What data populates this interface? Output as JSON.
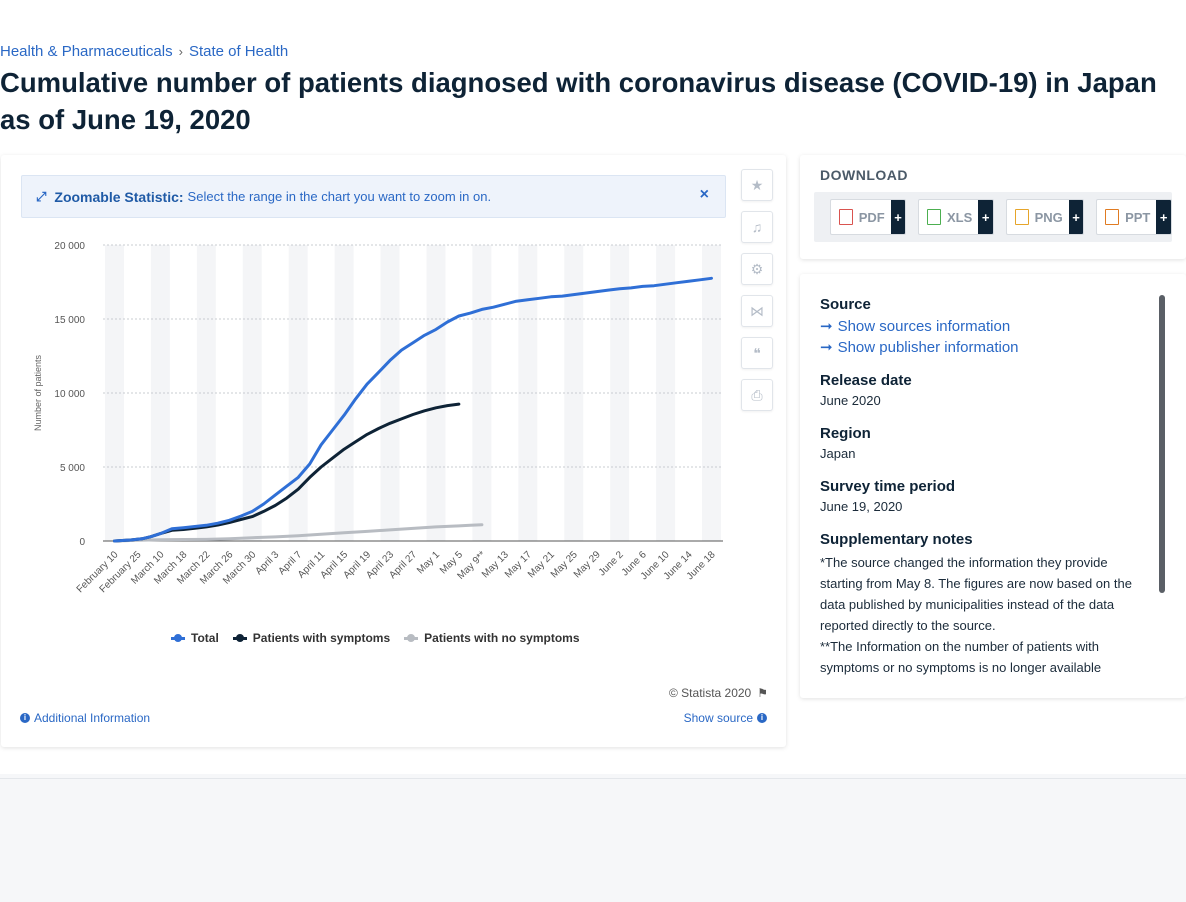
{
  "breadcrumb": {
    "item1": "Health & Pharmaceuticals",
    "separator": "›",
    "item2": "State of Health"
  },
  "title": "Cumulative number of patients diagnosed with coronavirus disease (COVID-19) in Japan as of June 19, 2020",
  "zoom": {
    "title": "Zoomable Statistic:",
    "text": "Select the range in the chart you want to zoom in on.",
    "close": "×",
    "icon": "expand-icon"
  },
  "chart_data": {
    "type": "line",
    "ylabel": "Number of patients",
    "ylim": [
      0,
      20000
    ],
    "yticks": [
      "0",
      "5 000",
      "10 000",
      "15 000",
      "20 000"
    ],
    "xticks": [
      "February 10",
      "February 25",
      "March 10",
      "March 18",
      "March 22",
      "March 26",
      "March 30",
      "April 3",
      "April 7",
      "April 11",
      "April 15",
      "April 19",
      "April 23",
      "April 27",
      "May 1",
      "May 5",
      "May 9**",
      "May 13",
      "May 17",
      "May 21",
      "May 25",
      "May 29",
      "June 2",
      "June 6",
      "June 10",
      "June 14",
      "June 18"
    ],
    "grid": true,
    "legend": "bottom",
    "series": [
      {
        "name": "Total",
        "color": "#2f6fd6",
        "points": [
          [
            0,
            0
          ],
          [
            0.7,
            70
          ],
          [
            1.2,
            150
          ],
          [
            1.6,
            300
          ],
          [
            2,
            500
          ],
          [
            2.5,
            830
          ],
          [
            3,
            900
          ],
          [
            3.5,
            980
          ],
          [
            4,
            1060
          ],
          [
            4.5,
            1200
          ],
          [
            5,
            1400
          ],
          [
            5.5,
            1680
          ],
          [
            6,
            2000
          ],
          [
            6.5,
            2500
          ],
          [
            7,
            3100
          ],
          [
            7.5,
            3700
          ],
          [
            8,
            4300
          ],
          [
            8.5,
            5200
          ],
          [
            9,
            6500
          ],
          [
            9.5,
            7500
          ],
          [
            10,
            8500
          ],
          [
            10.5,
            9600
          ],
          [
            11,
            10600
          ],
          [
            11.5,
            11400
          ],
          [
            12,
            12200
          ],
          [
            12.5,
            12900
          ],
          [
            13,
            13400
          ],
          [
            13.5,
            13900
          ],
          [
            14,
            14300
          ],
          [
            14.5,
            14800
          ],
          [
            15,
            15200
          ],
          [
            15.5,
            15400
          ],
          [
            16,
            15650
          ],
          [
            16.5,
            15800
          ],
          [
            17,
            16000
          ],
          [
            17.5,
            16200
          ],
          [
            18,
            16300
          ],
          [
            18.5,
            16400
          ],
          [
            19,
            16500
          ],
          [
            19.5,
            16550
          ],
          [
            20,
            16650
          ],
          [
            20.5,
            16750
          ],
          [
            21,
            16850
          ],
          [
            21.5,
            16950
          ],
          [
            22,
            17050
          ],
          [
            22.5,
            17100
          ],
          [
            23,
            17200
          ],
          [
            23.5,
            17250
          ],
          [
            24,
            17350
          ],
          [
            24.5,
            17450
          ],
          [
            25,
            17550
          ],
          [
            25.5,
            17650
          ],
          [
            26,
            17750
          ]
        ]
      },
      {
        "name": "Patients with symptoms",
        "color": "#0e2336",
        "points": [
          [
            0,
            0
          ],
          [
            0.7,
            70
          ],
          [
            1.2,
            150
          ],
          [
            1.6,
            300
          ],
          [
            2,
            500
          ],
          [
            2.5,
            720
          ],
          [
            3,
            780
          ],
          [
            3.5,
            860
          ],
          [
            4,
            950
          ],
          [
            4.5,
            1080
          ],
          [
            5,
            1250
          ],
          [
            5.5,
            1450
          ],
          [
            6,
            1650
          ],
          [
            6.5,
            2000
          ],
          [
            7,
            2400
          ],
          [
            7.5,
            2900
          ],
          [
            8,
            3500
          ],
          [
            8.5,
            4300
          ],
          [
            9,
            5000
          ],
          [
            9.5,
            5600
          ],
          [
            10,
            6200
          ],
          [
            10.5,
            6700
          ],
          [
            11,
            7200
          ],
          [
            11.5,
            7600
          ],
          [
            12,
            7950
          ],
          [
            12.5,
            8250
          ],
          [
            13,
            8550
          ],
          [
            13.5,
            8800
          ],
          [
            14,
            9000
          ],
          [
            14.5,
            9150
          ],
          [
            15,
            9250
          ]
        ]
      },
      {
        "name": "Patients with no symptoms",
        "color": "#b8bcc2",
        "points": [
          [
            0,
            0
          ],
          [
            1,
            50
          ],
          [
            2,
            80
          ],
          [
            3,
            100
          ],
          [
            4,
            110
          ],
          [
            5,
            150
          ],
          [
            6,
            220
          ],
          [
            7,
            280
          ],
          [
            8,
            350
          ],
          [
            9,
            450
          ],
          [
            10,
            560
          ],
          [
            11,
            650
          ],
          [
            12,
            750
          ],
          [
            13,
            850
          ],
          [
            14,
            950
          ],
          [
            15,
            1020
          ],
          [
            15.5,
            1060
          ],
          [
            16,
            1100
          ]
        ]
      }
    ]
  },
  "actions": [
    {
      "name": "favorite-star-icon",
      "glyph": "★"
    },
    {
      "name": "notification-bell-icon",
      "glyph": "🔔"
    },
    {
      "name": "settings-gear-icon",
      "glyph": "⚙"
    },
    {
      "name": "share-icon",
      "glyph": "⋲"
    },
    {
      "name": "quote-icon",
      "glyph": "❝"
    },
    {
      "name": "print-icon",
      "glyph": "⎙"
    }
  ],
  "footer": {
    "credit": "© Statista 2020",
    "additional": "Additional Information",
    "show_source": "Show source"
  },
  "download": {
    "title": "DOWNLOAD",
    "buttons": [
      {
        "label": "PDF",
        "color": "#d9534f"
      },
      {
        "label": "XLS",
        "color": "#4caf50"
      },
      {
        "label": "PNG",
        "color": "#e6a52a"
      },
      {
        "label": "PPT",
        "color": "#e07b22"
      }
    ],
    "plus": "+"
  },
  "info": {
    "source_label": "Source",
    "show_sources": "Show sources information",
    "show_publisher": "Show publisher information",
    "release_label": "Release date",
    "release_value": "June 2020",
    "region_label": "Region",
    "region_value": "Japan",
    "survey_label": "Survey time period",
    "survey_value": "June 19, 2020",
    "notes_label": "Supplementary notes",
    "notes_text": "*The source changed the information they provide starting from May 8. The figures are now based on the data published by municipalities instead of the data reported directly to the source.",
    "notes_text2": "**The Information on the number of patients with symptoms or no symptoms is no longer available"
  }
}
